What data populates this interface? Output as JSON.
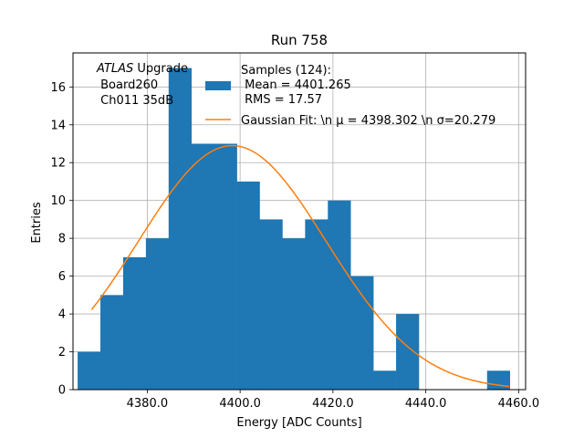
{
  "chart_data": {
    "type": "bar",
    "title": "Run 758",
    "xlabel": "Energy [ADC Counts]",
    "ylabel": "Entries",
    "xlim": [
      4364.0,
      4461.5
    ],
    "ylim": [
      0,
      17.8
    ],
    "grid": true,
    "xticks": [
      4380.0,
      4400.0,
      4420.0,
      4440.0,
      4460.0
    ],
    "xtick_labels": [
      "4380.0",
      "4400.0",
      "4420.0",
      "4440.0",
      "4460.0"
    ],
    "yticks": [
      0,
      2,
      4,
      6,
      8,
      10,
      12,
      14,
      16
    ],
    "ytick_labels": [
      "0",
      "2",
      "4",
      "6",
      "8",
      "10",
      "12",
      "14",
      "16"
    ],
    "histogram": {
      "bin_edges": [
        4365.0,
        4369.9,
        4374.8,
        4379.7,
        4384.6,
        4389.5,
        4394.4,
        4399.3,
        4404.2,
        4409.1,
        4414.0,
        4418.9,
        4423.8,
        4428.7,
        4433.6,
        4438.5,
        4443.4,
        4448.3,
        4453.2,
        4458.1
      ],
      "counts": [
        2,
        5,
        7,
        8,
        17,
        13,
        13,
        11,
        9,
        8,
        9,
        10,
        6,
        1,
        4,
        0,
        0,
        0,
        1
      ],
      "color": "#1f77b4"
    },
    "fit": {
      "type": "gaussian",
      "mu": 4398.302,
      "sigma": 20.279,
      "amplitude": 12.9,
      "x_range": [
        4368.0,
        4458.0
      ],
      "color": "#ff7f0e"
    },
    "legend": {
      "location": "upper-right",
      "samples_line1": "Samples (124):",
      "samples_line2": " Mean = 4401.265",
      "samples_line3": " RMS = 17.57",
      "fit_label": "Gaussian Fit: \\n μ = 4398.302 \\n σ=20.279"
    },
    "annotation": {
      "line1_italic": "ATLAS",
      "line1_rest": " Upgrade",
      "line2": " Board260",
      "line3": " Ch011 35dB"
    }
  }
}
